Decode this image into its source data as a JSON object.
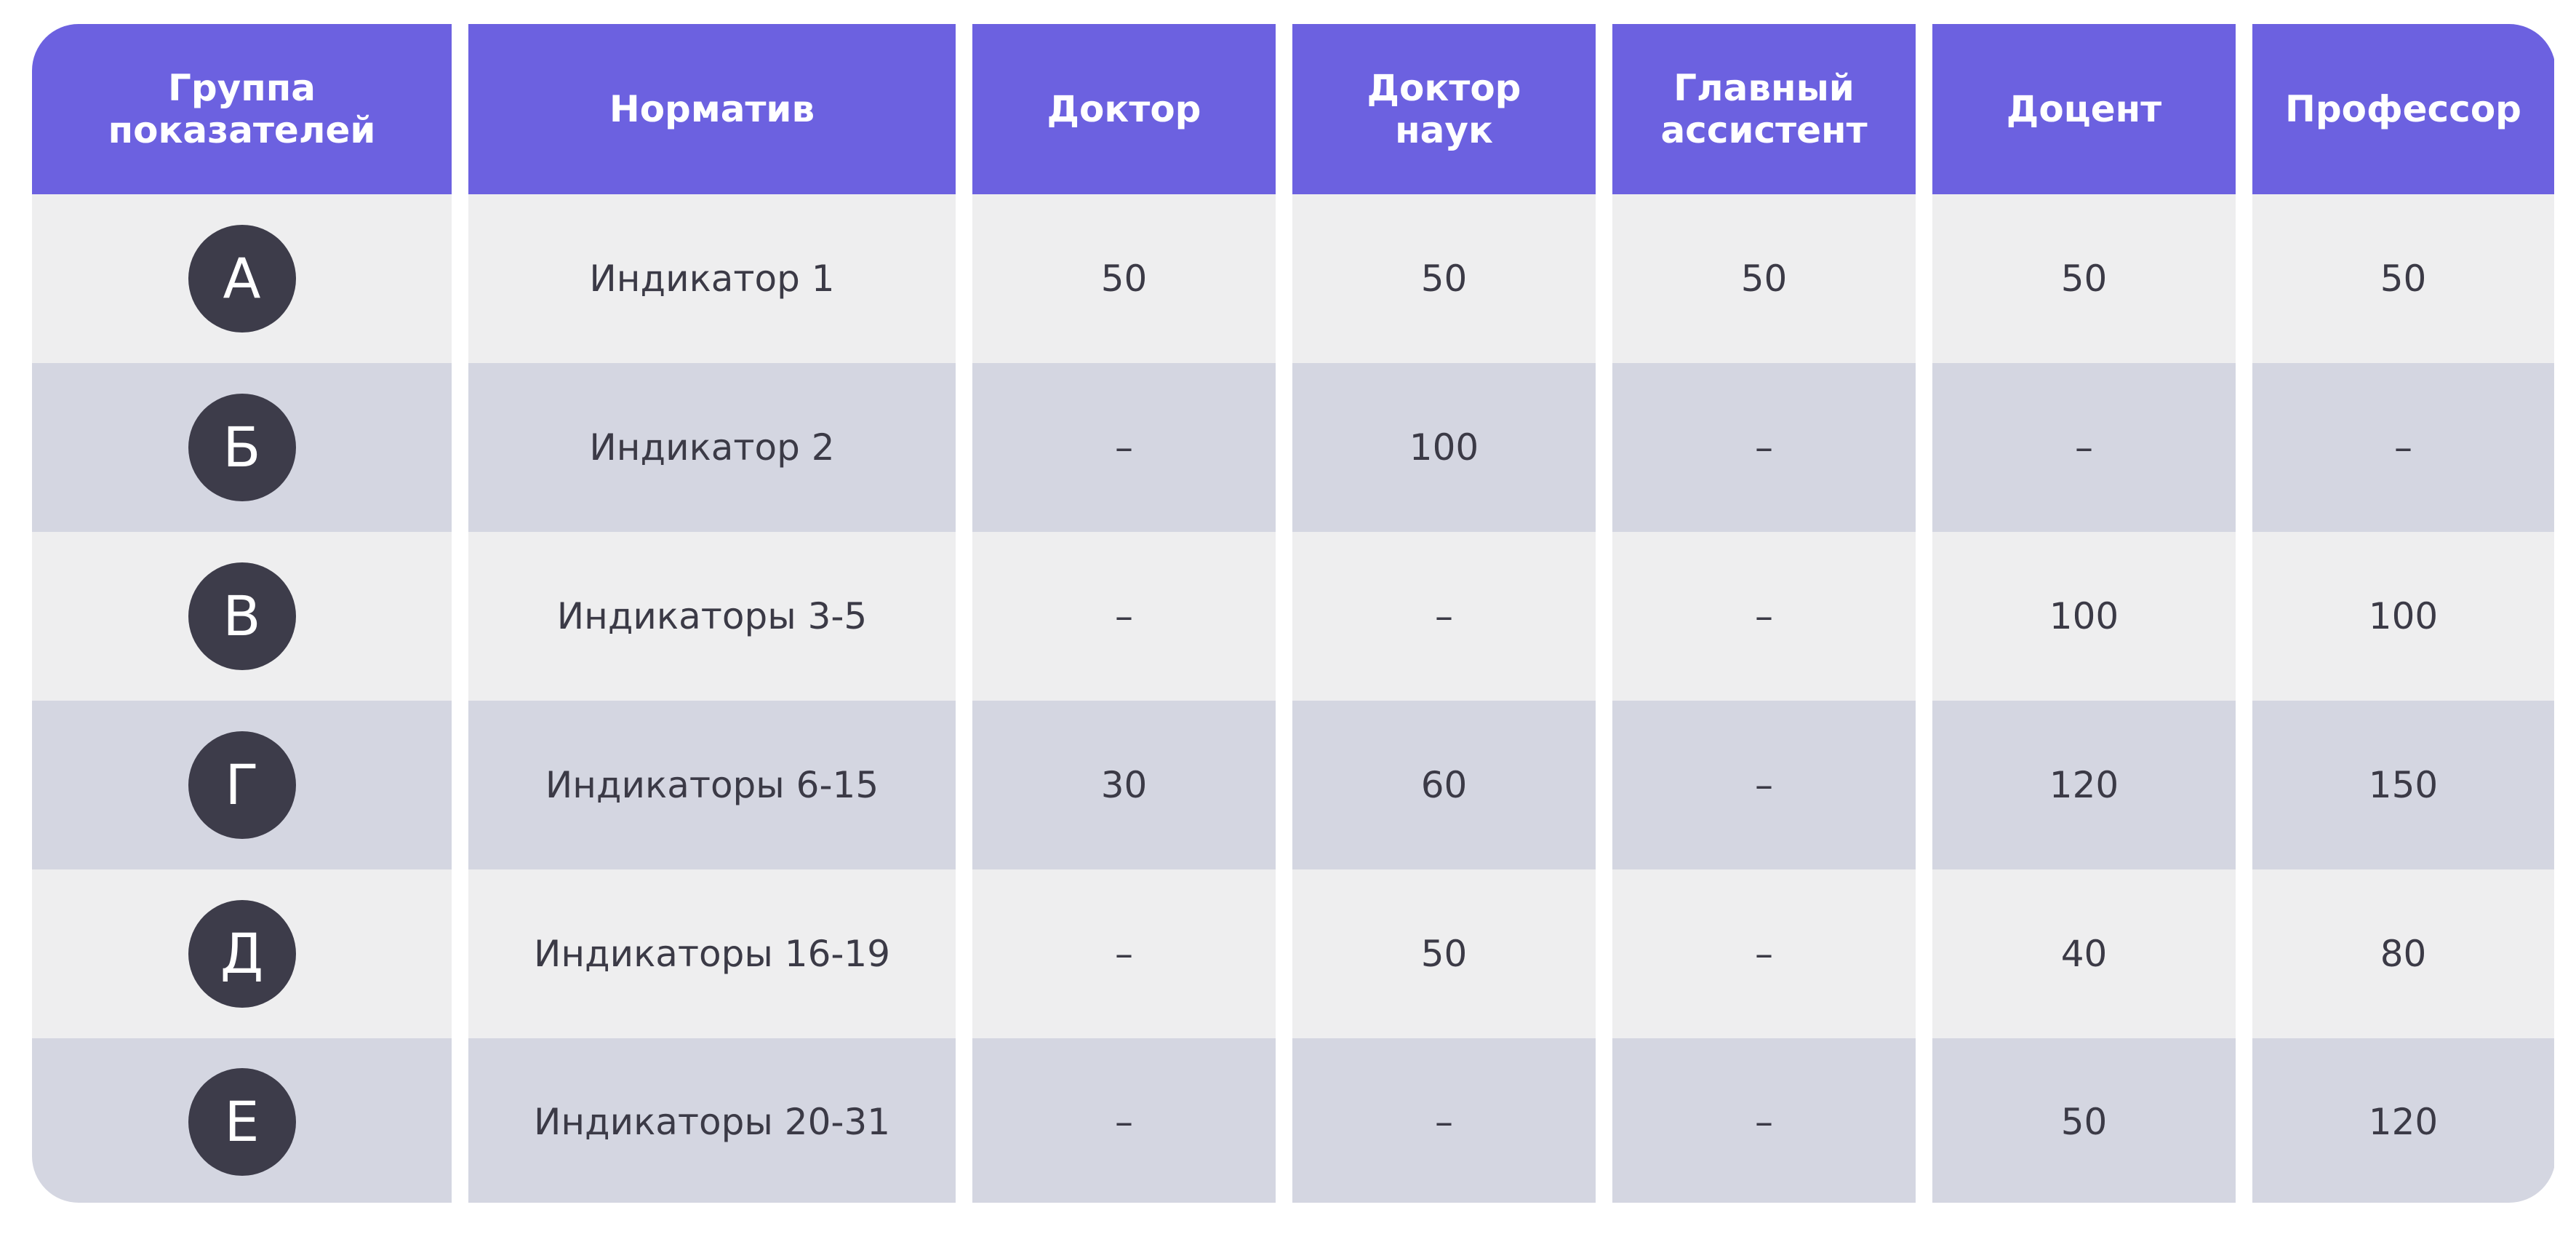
{
  "headers": [
    "Группа\nпоказателей",
    "Норматив",
    "Доктор",
    "Доктор\nнаук",
    "Главный\nассистент",
    "Доцент",
    "Профессор"
  ],
  "rows": [
    {
      "group": "А",
      "norm": "Индикатор 1",
      "values": [
        "50",
        "50",
        "50",
        "50",
        "50"
      ]
    },
    {
      "group": "Б",
      "norm": "Индикатор 2",
      "values": [
        "–",
        "100",
        "–",
        "–",
        "–"
      ]
    },
    {
      "group": "В",
      "norm": "Индикаторы 3-5",
      "values": [
        "–",
        "–",
        "–",
        "100",
        "100"
      ]
    },
    {
      "group": "Г",
      "norm": "Индикаторы 6-15",
      "values": [
        "30",
        "60",
        "–",
        "120",
        "150"
      ]
    },
    {
      "group": "Д",
      "norm": "Индикаторы 16-19",
      "values": [
        "–",
        "50",
        "–",
        "40",
        "80"
      ]
    },
    {
      "group": "Е",
      "norm": "Индикаторы 20-31",
      "values": [
        "–",
        "–",
        "–",
        "50",
        "120"
      ]
    }
  ],
  "colors": {
    "header_bg": "#6c61e0",
    "row_light": "#eeeeef",
    "row_dark": "#d4d6e1",
    "badge_bg": "#3d3c4a",
    "text": "#3b3a46"
  }
}
